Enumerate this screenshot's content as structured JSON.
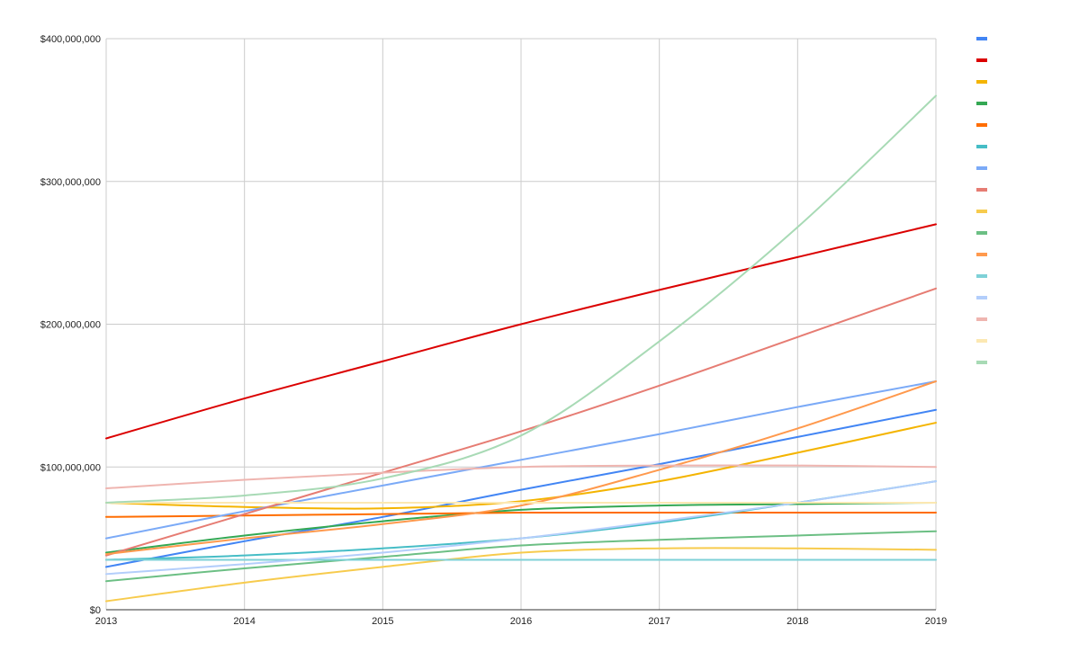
{
  "chart_data": {
    "type": "line",
    "title": "",
    "xlabel": "",
    "ylabel": "",
    "x": [
      2013,
      2014,
      2015,
      2016,
      2017,
      2018,
      2019
    ],
    "xlim": [
      2013,
      2019
    ],
    "ylim": [
      0,
      400000000
    ],
    "x_tick_labels": [
      "2013",
      "2014",
      "2015",
      "2016",
      "2017",
      "2018",
      "2019"
    ],
    "y_ticks": [
      0,
      100000000,
      200000000,
      300000000,
      400000000
    ],
    "y_tick_labels": [
      "$0",
      "$100,000,000",
      "$200,000,000",
      "$300,000,000",
      "$400,000,000"
    ],
    "grid": true,
    "legend_position": "right",
    "series": [
      {
        "color": "#4285f4",
        "values": [
          30000000,
          48000000,
          65000000,
          84000000,
          102000000,
          121000000,
          140000000
        ]
      },
      {
        "color": "#db0000",
        "values": [
          120000000,
          148000000,
          174000000,
          200000000,
          224000000,
          247000000,
          270000000
        ]
      },
      {
        "color": "#f4b400",
        "values": [
          75000000,
          72000000,
          71000000,
          76000000,
          90000000,
          110000000,
          131000000
        ]
      },
      {
        "color": "#34a853",
        "values": [
          40000000,
          52000000,
          62000000,
          70000000,
          73000000,
          74000000,
          75000000
        ]
      },
      {
        "color": "#ff6d00",
        "values": [
          65000000,
          66000000,
          67000000,
          68000000,
          68000000,
          68000000,
          68000000
        ]
      },
      {
        "color": "#46bdc6",
        "values": [
          35000000,
          38000000,
          43000000,
          50000000,
          61000000,
          75000000,
          90000000
        ]
      },
      {
        "color": "#7baaf7",
        "values": [
          50000000,
          69000000,
          87000000,
          105000000,
          123000000,
          142000000,
          160000000
        ]
      },
      {
        "color": "#e67c73",
        "values": [
          38000000,
          67000000,
          96000000,
          125000000,
          157000000,
          191000000,
          225000000
        ]
      },
      {
        "color": "#f7cb4d",
        "values": [
          6000000,
          19000000,
          30000000,
          40000000,
          43000000,
          43000000,
          42000000
        ]
      },
      {
        "color": "#6cbf84",
        "values": [
          20000000,
          29000000,
          37000000,
          45000000,
          49000000,
          52000000,
          55000000
        ]
      },
      {
        "color": "#ff994d",
        "values": [
          39000000,
          50000000,
          60000000,
          73000000,
          98000000,
          127000000,
          160000000
        ]
      },
      {
        "color": "#7ed1d7",
        "values": [
          35000000,
          35000000,
          35000000,
          35000000,
          35000000,
          35000000,
          35000000
        ]
      },
      {
        "color": "#b3cefb",
        "values": [
          25000000,
          32000000,
          40000000,
          50000000,
          62000000,
          75000000,
          90000000
        ]
      },
      {
        "color": "#efb5b0",
        "values": [
          85000000,
          91000000,
          96000000,
          100000000,
          101000000,
          101000000,
          100000000
        ]
      },
      {
        "color": "#fce8b2",
        "values": [
          75000000,
          75000000,
          75000000,
          75000000,
          75000000,
          75000000,
          75000000
        ]
      },
      {
        "color": "#a8dab5",
        "values": [
          75000000,
          80000000,
          92000000,
          122000000,
          188000000,
          268000000,
          360000000
        ]
      }
    ]
  }
}
